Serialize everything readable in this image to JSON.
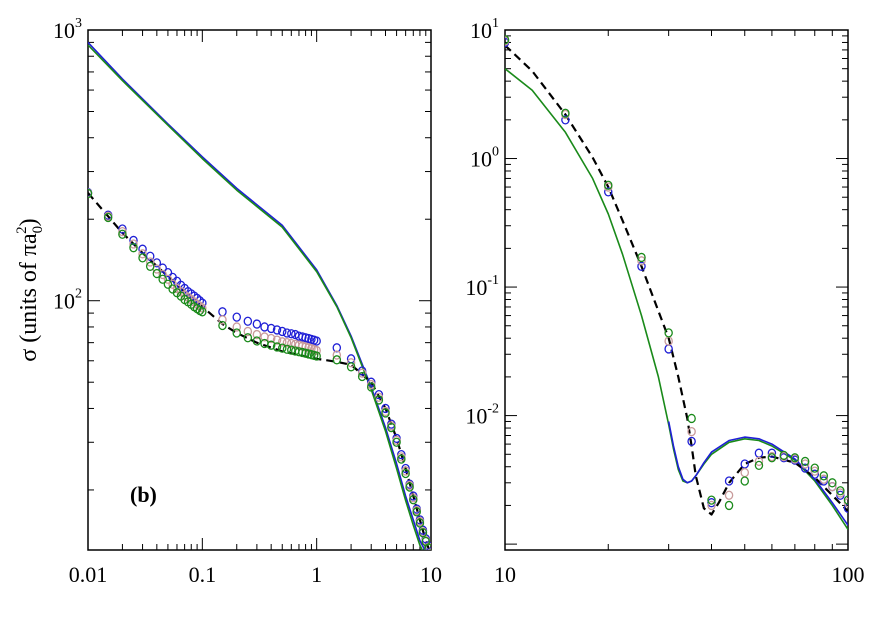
{
  "figure": {
    "ylabel": "σ (units of πa",
    "ylabel_sub": "0",
    "ylabel_sup": "2",
    "ylabel_end": ")",
    "panel_label": "(b)"
  },
  "colors": {
    "blue": "#1f1fd6",
    "pink": "#c89a9a",
    "green": "#1a8a1a",
    "black": "#000000",
    "teal": "#1a6f8a"
  },
  "chart_data": [
    {
      "type": "line",
      "title": "",
      "xscale": "log",
      "yscale": "log",
      "xlim": [
        0.01,
        10
      ],
      "ylim": [
        12,
        1000
      ],
      "xticks": [
        {
          "value": 0.01,
          "label": "0.01"
        },
        {
          "value": 0.1,
          "label": "0.1"
        },
        {
          "value": 1,
          "label": "1"
        },
        {
          "value": 10,
          "label": "10"
        }
      ],
      "yticks": [
        {
          "value": 100,
          "base": "10",
          "exp": "2"
        },
        {
          "value": 1000,
          "base": "10",
          "exp": "3"
        }
      ],
      "series": [
        {
          "name": "solid-blue",
          "kind": "line",
          "color": "#1f1fd6",
          "x": [
            0.01,
            0.02,
            0.05,
            0.1,
            0.2,
            0.5,
            1,
            1.5,
            2,
            3,
            4,
            5,
            6,
            7,
            8,
            9,
            10
          ],
          "y": [
            900,
            660,
            450,
            340,
            260,
            190,
            130,
            96,
            74,
            48,
            34,
            25,
            19,
            15.5,
            13,
            11.8,
            11
          ]
        },
        {
          "name": "solid-green",
          "kind": "line",
          "color": "#1a8a1a",
          "x": [
            0.01,
            0.02,
            0.05,
            0.1,
            0.2,
            0.5,
            1,
            1.5,
            2,
            3,
            4,
            5,
            6,
            7,
            8,
            9,
            10
          ],
          "y": [
            880,
            650,
            445,
            335,
            256,
            187,
            128,
            95,
            73,
            47,
            33,
            24,
            18.3,
            14.8,
            12.5,
            11.3,
            10.5
          ]
        },
        {
          "name": "dashed-black",
          "kind": "dashed",
          "color": "#000000",
          "x": [
            0.01,
            0.015,
            0.02,
            0.03,
            0.05,
            0.07,
            0.1,
            0.15,
            0.2,
            0.3,
            0.5,
            0.7,
            1,
            1.5,
            2,
            3,
            4,
            5,
            6,
            7,
            8,
            9,
            10
          ],
          "y": [
            250,
            205,
            178,
            150,
            123,
            108,
            95,
            82,
            76,
            70,
            65,
            63,
            61,
            59.5,
            58,
            50,
            40,
            31,
            24,
            19,
            15.5,
            13,
            11.5
          ]
        },
        {
          "name": "circles-blue",
          "kind": "circles",
          "color": "#1f1fd6",
          "x": [
            0.01,
            0.015,
            0.02,
            0.025,
            0.03,
            0.035,
            0.04,
            0.045,
            0.05,
            0.055,
            0.06,
            0.065,
            0.07,
            0.075,
            0.08,
            0.085,
            0.09,
            0.095,
            0.1,
            0.15,
            0.2,
            0.25,
            0.3,
            0.35,
            0.4,
            0.45,
            0.5,
            0.55,
            0.6,
            0.65,
            0.7,
            0.75,
            0.8,
            0.85,
            0.9,
            0.95,
            1,
            1.5,
            2,
            2.5,
            3,
            3.5,
            4,
            4.5,
            5,
            5.5,
            6,
            6.5,
            7,
            7.5,
            8,
            8.5,
            9,
            9.5,
            10
          ],
          "y": [
            251,
            207,
            184,
            167,
            155,
            146,
            138,
            132,
            127,
            122,
            118,
            114,
            111,
            108,
            106,
            104,
            102,
            100,
            98,
            91,
            87,
            84,
            82,
            80,
            79,
            78,
            77,
            76,
            75.5,
            75,
            74,
            73.5,
            73,
            72.5,
            72,
            71.5,
            71,
            67,
            61,
            55,
            50,
            45,
            40,
            35,
            31,
            27,
            24,
            21,
            19,
            17,
            15.5,
            14.2,
            13.2,
            12.4,
            11.8
          ]
        },
        {
          "name": "circles-pink",
          "kind": "circles",
          "color": "#c89a9a",
          "x": [
            0.01,
            0.015,
            0.02,
            0.025,
            0.03,
            0.035,
            0.04,
            0.045,
            0.05,
            0.055,
            0.06,
            0.065,
            0.07,
            0.075,
            0.08,
            0.085,
            0.09,
            0.095,
            0.1,
            0.15,
            0.2,
            0.25,
            0.3,
            0.35,
            0.4,
            0.45,
            0.5,
            0.55,
            0.6,
            0.65,
            0.7,
            0.75,
            0.8,
            0.85,
            0.9,
            0.95,
            1,
            1.5,
            2,
            2.5,
            3,
            3.5,
            4,
            4.5,
            5,
            5.5,
            6,
            6.5,
            7,
            7.5,
            8,
            8.5,
            9,
            9.5,
            10
          ],
          "y": [
            250,
            205,
            180,
            162,
            149,
            139,
            131,
            125,
            120,
            115,
            111,
            108,
            105,
            103,
            101,
            99,
            97,
            95.5,
            94,
            85,
            80,
            77,
            75,
            73.5,
            72.5,
            71.5,
            70.5,
            70,
            69.5,
            69,
            68.5,
            68,
            67.5,
            67,
            66.5,
            66,
            65.5,
            63,
            59,
            54,
            49,
            44,
            39,
            34.5,
            30.5,
            26.5,
            23.5,
            20.8,
            18.7,
            16.8,
            15.3,
            14,
            13,
            12.3,
            11.7
          ]
        },
        {
          "name": "circles-green",
          "kind": "circles",
          "color": "#1a8a1a",
          "x": [
            0.01,
            0.015,
            0.02,
            0.025,
            0.03,
            0.035,
            0.04,
            0.045,
            0.05,
            0.055,
            0.06,
            0.065,
            0.07,
            0.075,
            0.08,
            0.085,
            0.09,
            0.095,
            0.1,
            0.15,
            0.2,
            0.25,
            0.3,
            0.35,
            0.4,
            0.45,
            0.5,
            0.55,
            0.6,
            0.65,
            0.7,
            0.75,
            0.8,
            0.85,
            0.9,
            0.95,
            1,
            1.5,
            2,
            2.5,
            3,
            3.5,
            4,
            4.5,
            5,
            5.5,
            6,
            6.5,
            7,
            7.5,
            8,
            8.5,
            9,
            9.5,
            10
          ],
          "y": [
            249,
            203,
            176,
            157,
            144,
            134,
            126,
            120,
            115,
            110.5,
            107,
            104,
            101,
            99,
            97,
            95,
            93.5,
            92,
            91,
            81,
            76,
            73,
            71,
            69.5,
            68.5,
            67.5,
            66.8,
            66.2,
            65.7,
            65.2,
            64.8,
            64.4,
            64,
            63.6,
            63.2,
            62.8,
            62.5,
            60.5,
            57,
            52.5,
            48,
            43,
            38.5,
            34,
            30,
            26,
            23,
            20.5,
            18.4,
            16.6,
            15.1,
            13.9,
            12.9,
            12.2,
            11.6
          ]
        }
      ]
    },
    {
      "type": "line",
      "title": "",
      "xscale": "log",
      "yscale": "log",
      "xlim": [
        10,
        100
      ],
      "ylim": [
        0.0009,
        10
      ],
      "xticks": [
        {
          "value": 10,
          "label": "10"
        },
        {
          "value": 100,
          "label": "100"
        }
      ],
      "yticks": [
        {
          "value": 0.01,
          "base": "10",
          "exp": "-2"
        },
        {
          "value": 0.1,
          "base": "10",
          "exp": "-1"
        },
        {
          "value": 1,
          "base": "10",
          "exp": "0"
        },
        {
          "value": 10,
          "base": "10",
          "exp": "1"
        }
      ],
      "series": [
        {
          "name": "solid-green",
          "kind": "line",
          "color": "#1a8a1a",
          "x": [
            10,
            12,
            15,
            18,
            20,
            22,
            25,
            28,
            30,
            31,
            32,
            33,
            34,
            35,
            36,
            38,
            40,
            45,
            50,
            55,
            60,
            70,
            80,
            90,
            100
          ],
          "y": [
            5,
            3.4,
            1.6,
            0.7,
            0.37,
            0.18,
            0.06,
            0.02,
            0.0085,
            0.0055,
            0.0038,
            0.0031,
            0.003,
            0.0031,
            0.0034,
            0.0042,
            0.005,
            0.0062,
            0.0066,
            0.0064,
            0.0058,
            0.0045,
            0.0031,
            0.002,
            0.0013
          ]
        },
        {
          "name": "solid-blue",
          "kind": "line",
          "color": "#1f1fd6",
          "x": [
            30,
            31,
            32,
            33,
            34,
            35,
            36,
            38,
            40,
            45,
            50,
            55,
            60,
            70,
            80,
            90,
            100
          ],
          "y": [
            0.009,
            0.0058,
            0.004,
            0.0032,
            0.003,
            0.0031,
            0.0034,
            0.0043,
            0.0052,
            0.0064,
            0.0068,
            0.0066,
            0.006,
            0.0046,
            0.0032,
            0.0021,
            0.0014
          ]
        },
        {
          "name": "dashed-black",
          "kind": "dashed",
          "color": "#000000",
          "x": [
            10,
            12,
            15,
            18,
            20,
            22,
            25,
            28,
            30,
            32,
            34,
            35,
            36,
            38,
            40,
            42,
            45,
            50,
            55,
            60,
            70,
            80,
            90,
            100
          ],
          "y": [
            7.6,
            4.8,
            2.2,
            1.02,
            0.6,
            0.33,
            0.145,
            0.065,
            0.04,
            0.02,
            0.0095,
            0.0058,
            0.0034,
            0.0019,
            0.0017,
            0.0021,
            0.003,
            0.0042,
            0.0047,
            0.0048,
            0.0043,
            0.0033,
            0.0024,
            0.0018
          ]
        },
        {
          "name": "circles-blue",
          "kind": "circles",
          "color": "#1f1fd6",
          "x": [
            10,
            15,
            20,
            25,
            30,
            35,
            40,
            45,
            50,
            55,
            60,
            65,
            70,
            75,
            80,
            85,
            90,
            95,
            100
          ],
          "y": [
            8.0,
            2.0,
            0.55,
            0.145,
            0.033,
            0.0063,
            0.0021,
            0.0031,
            0.0042,
            0.0051,
            0.0051,
            0.0047,
            0.0045,
            0.0039,
            0.0035,
            0.0031,
            0.0028,
            0.0024,
            0.0019
          ]
        },
        {
          "name": "circles-pink",
          "kind": "circles",
          "color": "#c89a9a",
          "x": [
            10,
            15,
            20,
            25,
            30,
            35,
            40,
            45,
            50,
            55,
            60,
            65,
            70,
            75,
            80,
            85,
            90,
            95,
            100
          ],
          "y": [
            8.2,
            2.2,
            0.6,
            0.16,
            0.038,
            0.0075,
            0.002,
            0.0024,
            0.0036,
            0.0044,
            0.0048,
            0.0048,
            0.0046,
            0.0042,
            0.0037,
            0.0032,
            0.0028,
            0.0025,
            0.0021
          ]
        },
        {
          "name": "circles-green",
          "kind": "circles",
          "color": "#1a8a1a",
          "x": [
            10,
            15,
            20,
            25,
            30,
            35,
            40,
            45,
            50,
            55,
            60,
            65,
            70,
            75,
            80,
            85,
            90,
            95,
            100
          ],
          "y": [
            8.4,
            2.25,
            0.62,
            0.17,
            0.044,
            0.0095,
            0.0022,
            0.002,
            0.0031,
            0.0041,
            0.0047,
            0.0049,
            0.0047,
            0.0044,
            0.0039,
            0.0034,
            0.003,
            0.0026,
            0.0022
          ]
        }
      ]
    }
  ]
}
